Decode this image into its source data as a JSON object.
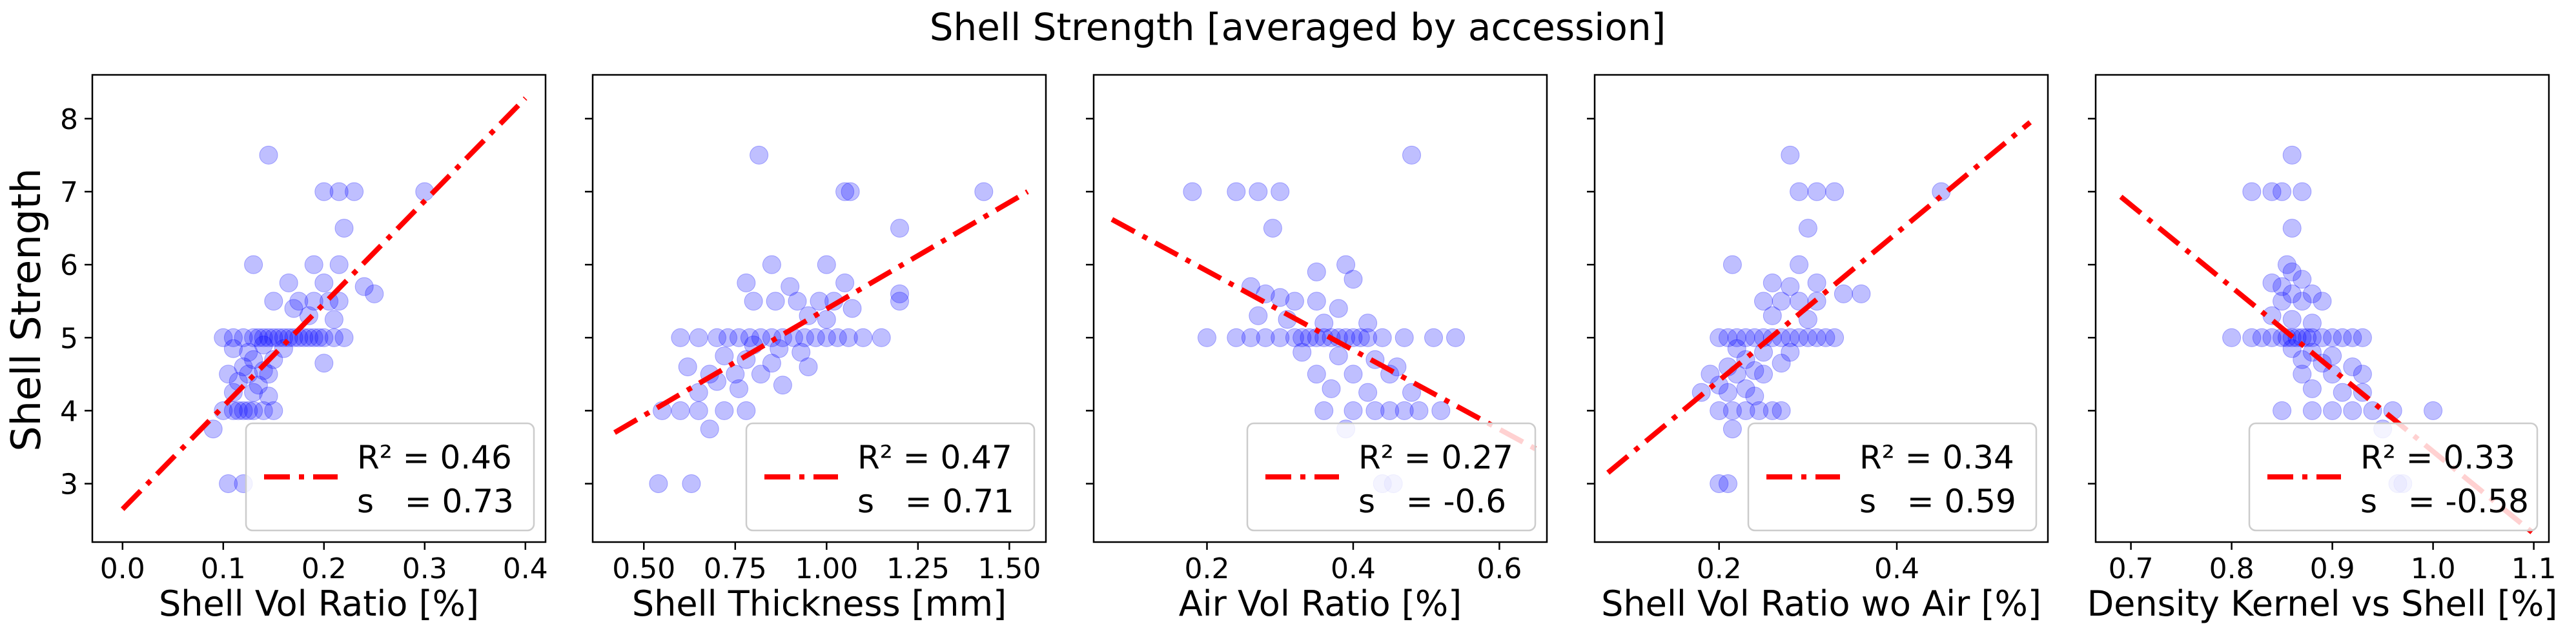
{
  "figure": {
    "title": "Shell Strength [averaged by accession]",
    "ylabel": "Shell Strength"
  },
  "colors": {
    "points": "#0000ff",
    "fit_line": "#ff0000",
    "legend_border": "#cccccc"
  },
  "chart_data": [
    {
      "type": "scatter",
      "xlabel": "Shell Vol Ratio [%]",
      "xlim": [
        -0.03,
        0.42
      ],
      "ylim": [
        2.2,
        8.6
      ],
      "xticks": [
        0.0,
        0.1,
        0.2,
        0.3,
        0.4
      ],
      "xtick_labels": [
        "0.0",
        "0.1",
        "0.2",
        "0.3",
        "0.4"
      ],
      "yticks": [
        3,
        4,
        5,
        6,
        7,
        8
      ],
      "ytick_labels": [
        "3",
        "4",
        "5",
        "6",
        "7",
        "8"
      ],
      "fit_line": {
        "x": [
          0.0,
          0.4
        ],
        "y": [
          2.65,
          8.28
        ]
      },
      "legend": {
        "r2_label": "R² = 0.46",
        "s_label": "s   = 0.73",
        "position": "lower-right"
      },
      "points": [
        [
          0.145,
          7.5
        ],
        [
          0.2,
          7.0
        ],
        [
          0.215,
          7.0
        ],
        [
          0.23,
          7.0
        ],
        [
          0.3,
          7.0
        ],
        [
          0.22,
          6.5
        ],
        [
          0.13,
          6.0
        ],
        [
          0.19,
          6.0
        ],
        [
          0.215,
          6.0
        ],
        [
          0.165,
          5.75
        ],
        [
          0.2,
          5.75
        ],
        [
          0.24,
          5.7
        ],
        [
          0.25,
          5.6
        ],
        [
          0.15,
          5.5
        ],
        [
          0.175,
          5.5
        ],
        [
          0.19,
          5.5
        ],
        [
          0.205,
          5.5
        ],
        [
          0.215,
          5.5
        ],
        [
          0.17,
          5.4
        ],
        [
          0.185,
          5.3
        ],
        [
          0.21,
          5.25
        ],
        [
          0.1,
          5.0
        ],
        [
          0.11,
          5.0
        ],
        [
          0.12,
          5.0
        ],
        [
          0.13,
          5.0
        ],
        [
          0.135,
          5.0
        ],
        [
          0.14,
          5.0
        ],
        [
          0.145,
          5.0
        ],
        [
          0.15,
          5.0
        ],
        [
          0.155,
          5.0
        ],
        [
          0.16,
          5.0
        ],
        [
          0.165,
          5.0
        ],
        [
          0.17,
          5.0
        ],
        [
          0.175,
          5.0
        ],
        [
          0.18,
          5.0
        ],
        [
          0.185,
          5.0
        ],
        [
          0.19,
          5.0
        ],
        [
          0.195,
          5.0
        ],
        [
          0.2,
          5.0
        ],
        [
          0.21,
          5.0
        ],
        [
          0.22,
          5.0
        ],
        [
          0.11,
          4.85
        ],
        [
          0.125,
          4.8
        ],
        [
          0.14,
          4.9
        ],
        [
          0.16,
          4.85
        ],
        [
          0.13,
          4.7
        ],
        [
          0.15,
          4.7
        ],
        [
          0.2,
          4.65
        ],
        [
          0.12,
          4.6
        ],
        [
          0.14,
          4.55
        ],
        [
          0.105,
          4.5
        ],
        [
          0.125,
          4.5
        ],
        [
          0.145,
          4.5
        ],
        [
          0.115,
          4.4
        ],
        [
          0.135,
          4.35
        ],
        [
          0.11,
          4.25
        ],
        [
          0.13,
          4.25
        ],
        [
          0.145,
          4.2
        ],
        [
          0.1,
          4.0
        ],
        [
          0.11,
          4.0
        ],
        [
          0.115,
          4.0
        ],
        [
          0.12,
          4.0
        ],
        [
          0.125,
          4.0
        ],
        [
          0.13,
          4.0
        ],
        [
          0.14,
          4.0
        ],
        [
          0.15,
          4.0
        ],
        [
          0.09,
          3.75
        ],
        [
          0.105,
          3.0
        ],
        [
          0.12,
          3.0
        ]
      ]
    },
    {
      "type": "scatter",
      "xlabel": "Shell Thickness [mm]",
      "xlim": [
        0.36,
        1.6
      ],
      "ylim": [
        2.2,
        8.6
      ],
      "xticks": [
        0.5,
        0.75,
        1.0,
        1.25,
        1.5
      ],
      "xtick_labels": [
        "0.50",
        "0.75",
        "1.00",
        "1.25",
        "1.50"
      ],
      "yticks": [
        3,
        4,
        5,
        6,
        7,
        8
      ],
      "ytick_labels": [
        "",
        "",
        "",
        "",
        "",
        ""
      ],
      "fit_line": {
        "x": [
          0.42,
          1.55
        ],
        "y": [
          3.7,
          7.0
        ]
      },
      "legend": {
        "r2_label": "R² = 0.47",
        "s_label": "s   = 0.71",
        "position": "lower-right"
      },
      "points": [
        [
          0.815,
          7.5
        ],
        [
          1.05,
          7.0
        ],
        [
          1.065,
          7.0
        ],
        [
          1.43,
          7.0
        ],
        [
          1.2,
          6.5
        ],
        [
          0.85,
          6.0
        ],
        [
          1.0,
          6.0
        ],
        [
          0.78,
          5.75
        ],
        [
          0.9,
          5.7
        ],
        [
          1.05,
          5.75
        ],
        [
          1.2,
          5.6
        ],
        [
          1.2,
          5.5
        ],
        [
          0.8,
          5.5
        ],
        [
          0.86,
          5.5
        ],
        [
          0.92,
          5.5
        ],
        [
          0.98,
          5.5
        ],
        [
          1.02,
          5.5
        ],
        [
          1.07,
          5.4
        ],
        [
          0.95,
          5.3
        ],
        [
          1.0,
          5.25
        ],
        [
          0.6,
          5.0
        ],
        [
          0.65,
          5.0
        ],
        [
          0.7,
          5.0
        ],
        [
          0.73,
          5.0
        ],
        [
          0.76,
          5.0
        ],
        [
          0.79,
          5.0
        ],
        [
          0.82,
          5.0
        ],
        [
          0.85,
          5.0
        ],
        [
          0.88,
          5.0
        ],
        [
          0.91,
          5.0
        ],
        [
          0.94,
          5.0
        ],
        [
          0.97,
          5.0
        ],
        [
          1.0,
          5.0
        ],
        [
          1.03,
          5.0
        ],
        [
          1.06,
          5.0
        ],
        [
          1.1,
          5.0
        ],
        [
          1.15,
          5.0
        ],
        [
          0.8,
          4.9
        ],
        [
          0.87,
          4.85
        ],
        [
          0.93,
          4.8
        ],
        [
          0.72,
          4.75
        ],
        [
          0.78,
          4.7
        ],
        [
          0.85,
          4.65
        ],
        [
          0.95,
          4.6
        ],
        [
          0.62,
          4.6
        ],
        [
          0.68,
          4.5
        ],
        [
          0.75,
          4.5
        ],
        [
          0.82,
          4.5
        ],
        [
          0.7,
          4.4
        ],
        [
          0.88,
          4.35
        ],
        [
          0.76,
          4.3
        ],
        [
          0.65,
          4.25
        ],
        [
          0.55,
          4.0
        ],
        [
          0.6,
          4.0
        ],
        [
          0.65,
          4.0
        ],
        [
          0.72,
          4.0
        ],
        [
          0.78,
          4.0
        ],
        [
          0.68,
          3.75
        ],
        [
          0.54,
          3.0
        ],
        [
          0.63,
          3.0
        ]
      ]
    },
    {
      "type": "scatter",
      "xlabel": "Air Vol Ratio [%]",
      "xlim": [
        0.045,
        0.665
      ],
      "ylim": [
        2.2,
        8.6
      ],
      "xticks": [
        0.2,
        0.4,
        0.6
      ],
      "xtick_labels": [
        "0.2",
        "0.4",
        "0.6"
      ],
      "yticks": [
        3,
        4,
        5,
        6,
        7,
        8
      ],
      "ytick_labels": [
        "",
        "",
        "",
        "",
        "",
        ""
      ],
      "fit_line": {
        "x": [
          0.07,
          0.66
        ],
        "y": [
          6.62,
          3.42
        ]
      },
      "legend": {
        "r2_label": "R² = 0.27",
        "s_label": "s   = -0.6",
        "position": "lower-right"
      },
      "points": [
        [
          0.48,
          7.5
        ],
        [
          0.18,
          7.0
        ],
        [
          0.24,
          7.0
        ],
        [
          0.27,
          7.0
        ],
        [
          0.3,
          7.0
        ],
        [
          0.29,
          6.5
        ],
        [
          0.39,
          6.0
        ],
        [
          0.35,
          5.9
        ],
        [
          0.4,
          5.8
        ],
        [
          0.26,
          5.7
        ],
        [
          0.28,
          5.6
        ],
        [
          0.3,
          5.55
        ],
        [
          0.32,
          5.5
        ],
        [
          0.35,
          5.5
        ],
        [
          0.38,
          5.4
        ],
        [
          0.27,
          5.3
        ],
        [
          0.31,
          5.25
        ],
        [
          0.36,
          5.2
        ],
        [
          0.42,
          5.2
        ],
        [
          0.2,
          5.0
        ],
        [
          0.24,
          5.0
        ],
        [
          0.26,
          5.0
        ],
        [
          0.28,
          5.0
        ],
        [
          0.3,
          5.0
        ],
        [
          0.32,
          5.0
        ],
        [
          0.33,
          5.0
        ],
        [
          0.34,
          5.0
        ],
        [
          0.35,
          5.0
        ],
        [
          0.36,
          5.0
        ],
        [
          0.37,
          5.0
        ],
        [
          0.38,
          5.0
        ],
        [
          0.39,
          5.0
        ],
        [
          0.4,
          5.0
        ],
        [
          0.41,
          5.0
        ],
        [
          0.42,
          5.0
        ],
        [
          0.44,
          5.0
        ],
        [
          0.47,
          5.0
        ],
        [
          0.51,
          5.0
        ],
        [
          0.54,
          5.0
        ],
        [
          0.33,
          4.8
        ],
        [
          0.38,
          4.75
        ],
        [
          0.43,
          4.7
        ],
        [
          0.46,
          4.6
        ],
        [
          0.35,
          4.5
        ],
        [
          0.4,
          4.5
        ],
        [
          0.45,
          4.5
        ],
        [
          0.37,
          4.3
        ],
        [
          0.42,
          4.25
        ],
        [
          0.48,
          4.25
        ],
        [
          0.36,
          4.0
        ],
        [
          0.4,
          4.0
        ],
        [
          0.43,
          4.0
        ],
        [
          0.45,
          4.0
        ],
        [
          0.47,
          4.0
        ],
        [
          0.49,
          4.0
        ],
        [
          0.52,
          4.0
        ],
        [
          0.39,
          3.75
        ],
        [
          0.44,
          3.0
        ],
        [
          0.455,
          3.0
        ]
      ]
    },
    {
      "type": "scatter",
      "xlabel": "Shell Vol Ratio wo Air [%]",
      "xlim": [
        0.06,
        0.57
      ],
      "ylim": [
        2.2,
        8.6
      ],
      "xticks": [
        0.2,
        0.4
      ],
      "xtick_labels": [
        "0.2",
        "0.4"
      ],
      "yticks": [
        3,
        4,
        5,
        6,
        7,
        8
      ],
      "ytick_labels": [
        "",
        "",
        "",
        "",
        "",
        ""
      ],
      "fit_line": {
        "x": [
          0.075,
          0.55
        ],
        "y": [
          3.15,
          7.95
        ]
      },
      "legend": {
        "r2_label": "R² = 0.34",
        "s_label": "s   = 0.59",
        "position": "lower-right"
      },
      "points": [
        [
          0.28,
          7.5
        ],
        [
          0.29,
          7.0
        ],
        [
          0.31,
          7.0
        ],
        [
          0.33,
          7.0
        ],
        [
          0.45,
          7.0
        ],
        [
          0.3,
          6.5
        ],
        [
          0.215,
          6.0
        ],
        [
          0.29,
          6.0
        ],
        [
          0.26,
          5.75
        ],
        [
          0.28,
          5.7
        ],
        [
          0.31,
          5.75
        ],
        [
          0.34,
          5.6
        ],
        [
          0.36,
          5.6
        ],
        [
          0.25,
          5.5
        ],
        [
          0.27,
          5.5
        ],
        [
          0.29,
          5.5
        ],
        [
          0.31,
          5.5
        ],
        [
          0.26,
          5.3
        ],
        [
          0.3,
          5.25
        ],
        [
          0.2,
          5.0
        ],
        [
          0.21,
          5.0
        ],
        [
          0.22,
          5.0
        ],
        [
          0.23,
          5.0
        ],
        [
          0.24,
          5.0
        ],
        [
          0.25,
          5.0
        ],
        [
          0.26,
          5.0
        ],
        [
          0.27,
          5.0
        ],
        [
          0.28,
          5.0
        ],
        [
          0.29,
          5.0
        ],
        [
          0.3,
          5.0
        ],
        [
          0.31,
          5.0
        ],
        [
          0.32,
          5.0
        ],
        [
          0.33,
          5.0
        ],
        [
          0.22,
          4.85
        ],
        [
          0.25,
          4.8
        ],
        [
          0.28,
          4.8
        ],
        [
          0.23,
          4.7
        ],
        [
          0.27,
          4.65
        ],
        [
          0.21,
          4.6
        ],
        [
          0.24,
          4.55
        ],
        [
          0.19,
          4.5
        ],
        [
          0.22,
          4.5
        ],
        [
          0.25,
          4.5
        ],
        [
          0.2,
          4.35
        ],
        [
          0.23,
          4.3
        ],
        [
          0.18,
          4.25
        ],
        [
          0.21,
          4.25
        ],
        [
          0.24,
          4.2
        ],
        [
          0.2,
          4.0
        ],
        [
          0.215,
          4.0
        ],
        [
          0.23,
          4.0
        ],
        [
          0.245,
          4.0
        ],
        [
          0.26,
          4.0
        ],
        [
          0.27,
          4.0
        ],
        [
          0.215,
          3.75
        ],
        [
          0.2,
          3.0
        ],
        [
          0.21,
          3.0
        ]
      ]
    },
    {
      "type": "scatter",
      "xlabel": "Density Kernel vs Shell [%]",
      "xlim": [
        0.665,
        1.115
      ],
      "ylim": [
        2.2,
        8.6
      ],
      "xticks": [
        0.7,
        0.8,
        0.9,
        1.0,
        1.1
      ],
      "xtick_labels": [
        "0.7",
        "0.8",
        "0.9",
        "1.0",
        "1.1"
      ],
      "yticks": [
        3,
        4,
        5,
        6,
        7,
        8
      ],
      "ytick_labels": [
        "",
        "",
        "",
        "",
        "",
        ""
      ],
      "fit_line": {
        "x": [
          0.69,
          1.105
        ],
        "y": [
          6.93,
          2.26
        ]
      },
      "legend": {
        "r2_label": "R² = 0.33",
        "s_label": "s   = -0.58",
        "position": "lower-right"
      },
      "points": [
        [
          0.86,
          7.5
        ],
        [
          0.82,
          7.0
        ],
        [
          0.84,
          7.0
        ],
        [
          0.85,
          7.0
        ],
        [
          0.87,
          7.0
        ],
        [
          0.86,
          6.5
        ],
        [
          0.855,
          6.0
        ],
        [
          0.86,
          5.9
        ],
        [
          0.87,
          5.8
        ],
        [
          0.84,
          5.75
        ],
        [
          0.85,
          5.7
        ],
        [
          0.86,
          5.6
        ],
        [
          0.88,
          5.6
        ],
        [
          0.85,
          5.5
        ],
        [
          0.87,
          5.5
        ],
        [
          0.89,
          5.5
        ],
        [
          0.84,
          5.3
        ],
        [
          0.86,
          5.25
        ],
        [
          0.88,
          5.2
        ],
        [
          0.8,
          5.0
        ],
        [
          0.82,
          5.0
        ],
        [
          0.83,
          5.0
        ],
        [
          0.84,
          5.0
        ],
        [
          0.85,
          5.0
        ],
        [
          0.855,
          5.0
        ],
        [
          0.86,
          5.0
        ],
        [
          0.865,
          5.0
        ],
        [
          0.87,
          5.0
        ],
        [
          0.875,
          5.0
        ],
        [
          0.88,
          5.0
        ],
        [
          0.89,
          5.0
        ],
        [
          0.9,
          5.0
        ],
        [
          0.91,
          5.0
        ],
        [
          0.92,
          5.0
        ],
        [
          0.93,
          5.0
        ],
        [
          0.86,
          4.85
        ],
        [
          0.88,
          4.8
        ],
        [
          0.9,
          4.75
        ],
        [
          0.87,
          4.7
        ],
        [
          0.89,
          4.65
        ],
        [
          0.92,
          4.6
        ],
        [
          0.87,
          4.5
        ],
        [
          0.9,
          4.5
        ],
        [
          0.93,
          4.5
        ],
        [
          0.88,
          4.3
        ],
        [
          0.91,
          4.25
        ],
        [
          0.93,
          4.25
        ],
        [
          0.85,
          4.0
        ],
        [
          0.88,
          4.0
        ],
        [
          0.9,
          4.0
        ],
        [
          0.92,
          4.0
        ],
        [
          0.94,
          4.0
        ],
        [
          0.96,
          4.0
        ],
        [
          1.0,
          4.0
        ],
        [
          0.95,
          3.75
        ],
        [
          0.965,
          3.0
        ],
        [
          0.97,
          3.0
        ]
      ]
    }
  ]
}
